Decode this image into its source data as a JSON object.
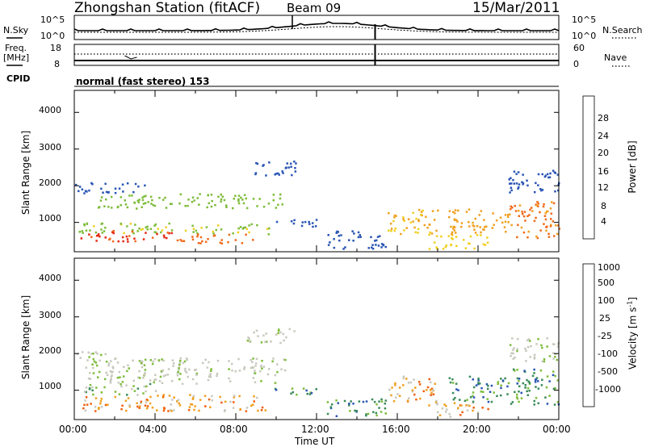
{
  "header": {
    "station": "Zhongshan Station (fitACF)",
    "beam": "Beam 09",
    "date": "15/Mar/2011"
  },
  "strip1": {
    "left_label": "N.Sky",
    "right_label": "N.Search",
    "left_ticks": [
      "10^5",
      "10^0"
    ],
    "right_ticks": [
      "10^5",
      "10^0"
    ]
  },
  "strip2": {
    "left_label_line1": "Freq.",
    "left_label_line2": "[MHz]",
    "right_label": "Nave",
    "left_ticks": [
      "18",
      "8"
    ],
    "right_ticks": [
      "60",
      "0"
    ]
  },
  "cpid": {
    "label": "CPID",
    "value": "normal (fast stereo) 153"
  },
  "colors": {
    "power_scale": [
      "#0a14e6",
      "#2a55b4",
      "#3a8a5a",
      "#7dbc3a",
      "#f0d020",
      "#f0a020",
      "#f06a1a",
      "#e62a14",
      "#e60a0a"
    ],
    "velocity_scale": [
      "#e60a0a",
      "#f06010",
      "#f0a020",
      "#c8c8be",
      "#c8c8be",
      "#7dbc3a",
      "#3a8a5a",
      "#2a55b4",
      "#0a14e6"
    ]
  },
  "chart_data": [
    {
      "type": "heatmap",
      "name": "power",
      "ylabel": "Slant Range [km]",
      "yticks": [
        "1000",
        "2000",
        "3000",
        "4000"
      ],
      "ylim": [
        200,
        4600
      ],
      "colorbar_label": "Power [dB]",
      "colorbar_ticks": [
        "4",
        "8",
        "12",
        "16",
        "20",
        "24",
        "28"
      ],
      "colorbar_range": [
        0,
        32
      ],
      "scatter_bands": [
        {
          "t": [
            0.2,
            9.8
          ],
          "r": [
            700,
            1000
          ],
          "v": 14
        },
        {
          "t": [
            0.3,
            5.0
          ],
          "r": [
            500,
            800
          ],
          "v": 26
        },
        {
          "t": [
            5.0,
            9.0
          ],
          "r": [
            450,
            700
          ],
          "v": 24
        },
        {
          "t": [
            1.0,
            10.5
          ],
          "r": [
            1400,
            1800
          ],
          "v": 12
        },
        {
          "t": [
            0.0,
            3.5
          ],
          "r": [
            1800,
            2100
          ],
          "v": 6
        },
        {
          "t": [
            8.5,
            11.0
          ],
          "r": [
            2300,
            2700
          ],
          "v": 5
        },
        {
          "t": [
            9.5,
            12.0
          ],
          "r": [
            900,
            1100
          ],
          "v": 6
        },
        {
          "t": [
            12.5,
            15.5
          ],
          "r": [
            300,
            800
          ],
          "v": 6
        },
        {
          "t": [
            15.5,
            18.0
          ],
          "r": [
            700,
            1400
          ],
          "v": 18
        },
        {
          "t": [
            17.5,
            20.5
          ],
          "r": [
            300,
            700
          ],
          "v": 16
        },
        {
          "t": [
            18.5,
            21.5
          ],
          "r": [
            700,
            1400
          ],
          "v": 20
        },
        {
          "t": [
            21.5,
            24.0
          ],
          "r": [
            600,
            1600
          ],
          "v": 22
        },
        {
          "t": [
            21.5,
            24.0
          ],
          "r": [
            1800,
            2500
          ],
          "v": 6
        }
      ]
    },
    {
      "type": "heatmap",
      "name": "velocity",
      "ylabel": "Slant Range [km]",
      "yticks": [
        "1000",
        "2000",
        "3000",
        "4000"
      ],
      "ylim": [
        200,
        4600
      ],
      "xlabel": "Time UT",
      "xticks": [
        "00:00",
        "04:00",
        "08:00",
        "12:00",
        "16:00",
        "20:00",
        "00:00"
      ],
      "xlim": [
        0,
        24
      ],
      "colorbar_label": "Velocity [m s",
      "colorbar_ticks": [
        "-1000",
        "-500",
        "-100",
        "-25",
        "25",
        "100",
        "500",
        "1000"
      ],
      "scatter_bands": [
        {
          "t": [
            0.2,
            9.5
          ],
          "r": [
            450,
            900
          ],
          "v": 2
        },
        {
          "t": [
            0.3,
            4.0
          ],
          "r": [
            900,
            1200
          ],
          "v": 5
        },
        {
          "t": [
            0.5,
            10.5
          ],
          "r": [
            1200,
            1900
          ],
          "v": 4
        },
        {
          "t": [
            0.0,
            2.0
          ],
          "r": [
            1800,
            2100
          ],
          "v": 4
        },
        {
          "t": [
            8.5,
            11.0
          ],
          "r": [
            2300,
            2700
          ],
          "v": 4
        },
        {
          "t": [
            9.5,
            12.0
          ],
          "r": [
            900,
            1100
          ],
          "v": 6
        },
        {
          "t": [
            12.5,
            15.5
          ],
          "r": [
            300,
            800
          ],
          "v": 6
        },
        {
          "t": [
            15.5,
            18.0
          ],
          "r": [
            700,
            1400
          ],
          "v": 2
        },
        {
          "t": [
            17.5,
            20.5
          ],
          "r": [
            300,
            700
          ],
          "v": 2
        },
        {
          "t": [
            18.5,
            21.5
          ],
          "r": [
            700,
            1400
          ],
          "v": 6
        },
        {
          "t": [
            21.5,
            24.0
          ],
          "r": [
            600,
            1600
          ],
          "v": 6
        },
        {
          "t": [
            21.5,
            24.0
          ],
          "r": [
            1800,
            2500
          ],
          "v": 4
        }
      ]
    }
  ]
}
